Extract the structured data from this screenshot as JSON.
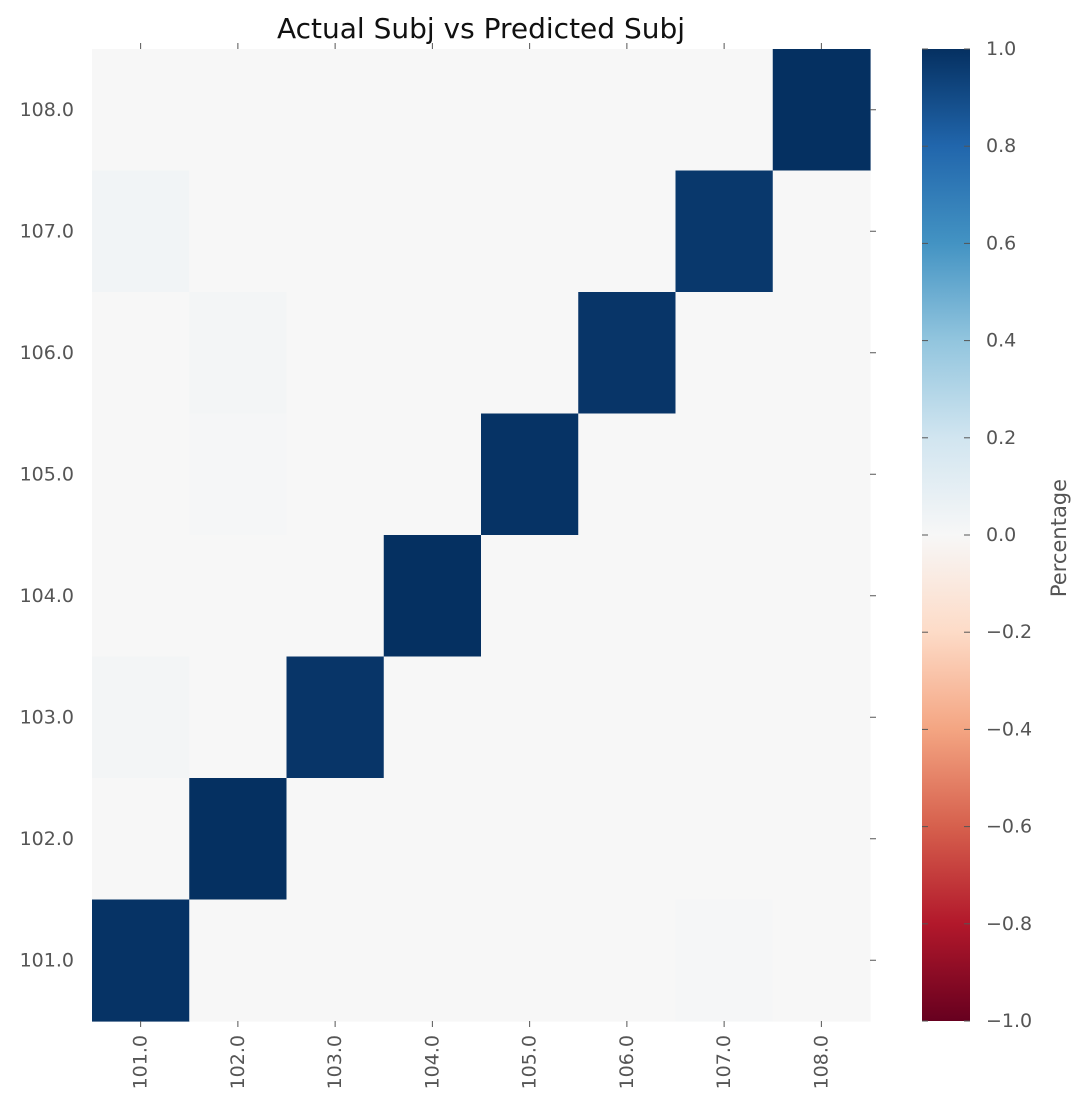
{
  "chart_data": {
    "type": "heatmap",
    "title": "Actual Subj vs Predicted Subj",
    "xlabel": "",
    "ylabel": "",
    "x_categories": [
      "101.0",
      "102.0",
      "103.0",
      "104.0",
      "105.0",
      "106.0",
      "107.0",
      "108.0"
    ],
    "y_categories": [
      "108.0",
      "107.0",
      "106.0",
      "105.0",
      "104.0",
      "103.0",
      "102.0",
      "101.0"
    ],
    "values": [
      [
        0.0,
        0.0,
        0.0,
        0.0,
        0.0,
        0.0,
        0.0,
        1.0
      ],
      [
        0.03,
        0.0,
        0.0,
        0.0,
        0.0,
        0.0,
        0.97,
        0.0
      ],
      [
        0.0,
        0.02,
        0.0,
        0.0,
        0.0,
        0.98,
        0.0,
        0.0
      ],
      [
        0.0,
        0.01,
        0.0,
        0.0,
        0.99,
        0.0,
        0.0,
        0.0
      ],
      [
        0.0,
        0.0,
        0.0,
        1.0,
        0.0,
        0.0,
        0.0,
        0.0
      ],
      [
        0.02,
        0.0,
        0.98,
        0.0,
        0.0,
        0.0,
        0.0,
        0.0
      ],
      [
        0.0,
        1.0,
        0.0,
        0.0,
        0.0,
        0.0,
        0.0,
        0.0
      ],
      [
        0.99,
        0.0,
        0.0,
        0.0,
        0.0,
        0.0,
        0.01,
        0.0
      ]
    ],
    "colorbar": {
      "label": "Percentage",
      "min": -1.0,
      "max": 1.0,
      "ticks": [
        "1.0",
        "0.8",
        "0.6",
        "0.4",
        "0.2",
        "0.0",
        "−0.2",
        "−0.4",
        "−0.6",
        "−0.8",
        "−1.0"
      ],
      "tick_values": [
        1.0,
        0.8,
        0.6,
        0.4,
        0.2,
        0.0,
        -0.2,
        -0.4,
        -0.6,
        -0.8,
        -1.0
      ],
      "colormap": "RdBu",
      "colors": [
        "#67001f",
        "#b2182b",
        "#d6604d",
        "#f4a582",
        "#fddbc7",
        "#f7f7f7",
        "#d1e5f0",
        "#92c5de",
        "#4393c3",
        "#2166ac",
        "#053061"
      ]
    },
    "grid": false,
    "legend": "colorbar-right"
  }
}
